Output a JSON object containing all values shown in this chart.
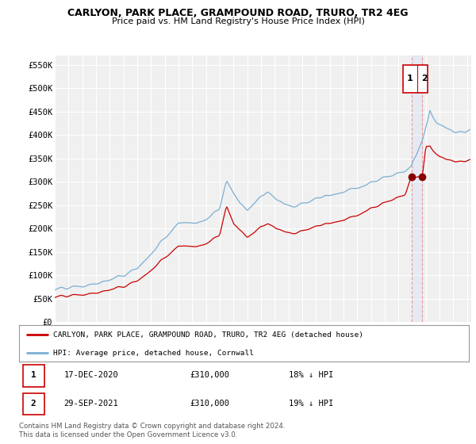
{
  "title": "CARLYON, PARK PLACE, GRAMPOUND ROAD, TRURO, TR2 4EG",
  "subtitle": "Price paid vs. HM Land Registry's House Price Index (HPI)",
  "legend_label_red": "CARLYON, PARK PLACE, GRAMPOUND ROAD, TRURO, TR2 4EG (detached house)",
  "legend_label_blue": "HPI: Average price, detached house, Cornwall",
  "footnote": "Contains HM Land Registry data © Crown copyright and database right 2024.\nThis data is licensed under the Open Government Licence v3.0.",
  "table_rows": [
    {
      "num": "1",
      "date": "17-DEC-2020",
      "price": "£310,000",
      "hpi": "18% ↓ HPI"
    },
    {
      "num": "2",
      "date": "29-SEP-2021",
      "price": "£310,000",
      "hpi": "19% ↓ HPI"
    }
  ],
  "yticks": [
    0,
    50000,
    100000,
    150000,
    200000,
    250000,
    300000,
    350000,
    400000,
    450000,
    500000,
    550000
  ],
  "ytick_labels": [
    "£0",
    "£50K",
    "£100K",
    "£150K",
    "£200K",
    "£250K",
    "£300K",
    "£350K",
    "£400K",
    "£450K",
    "£500K",
    "£550K"
  ],
  "color_red": "#cc0000",
  "color_blue": "#7bafd4",
  "color_dashed": "#cc0000",
  "marker1_x": 2020.96,
  "marker1_y": 310000,
  "marker2_x": 2021.75,
  "marker2_y": 310000,
  "dashed_x1": 2020.96,
  "dashed_x2": 2021.75,
  "xlim_left": 1995.0,
  "xlim_right": 2025.3,
  "ylim_bottom": 0,
  "ylim_top": 570000,
  "background_plot": "#f0f0f0",
  "background_fig": "#ffffff",
  "grid_color": "#ffffff"
}
